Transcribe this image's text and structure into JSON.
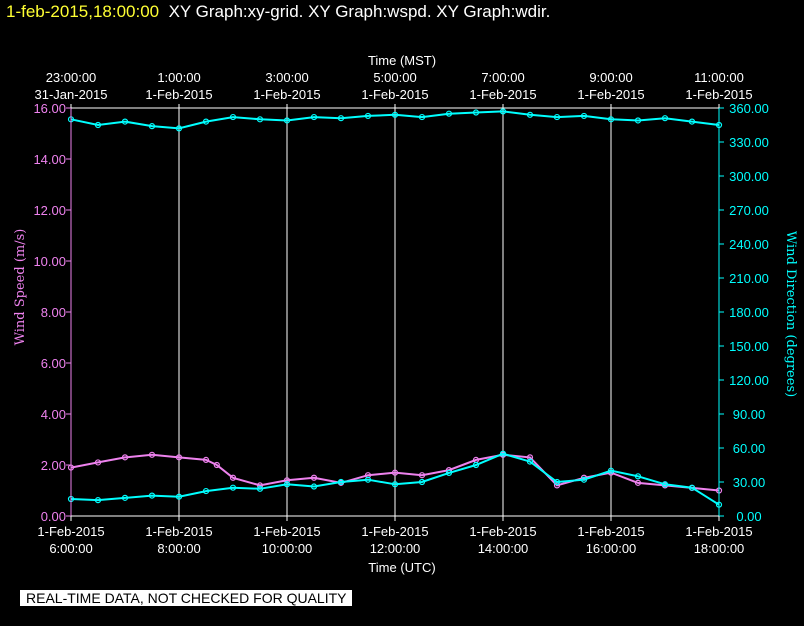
{
  "header": {
    "timestamp": "1-feb-2015,18:00:00",
    "graphs_title": "XY Graph:xy-grid.  XY Graph:wspd.  XY Graph:wdir."
  },
  "footer": {
    "notice": "REAL-TIME DATA, NOT CHECKED FOR QUALITY"
  },
  "colors": {
    "wspd": "#ee82ee",
    "wdir": "#00ffff",
    "timestamp": "#ffff33",
    "grid": "#ffffff",
    "background": "#000000"
  },
  "chart_data": {
    "type": "scatter",
    "top_axis": {
      "label": "Time (MST)",
      "ticks": [
        {
          "time": "23:00:00",
          "date": "31-Jan-2015",
          "utc_hour": 6
        },
        {
          "time": "1:00:00",
          "date": "1-Feb-2015",
          "utc_hour": 8
        },
        {
          "time": "3:00:00",
          "date": "1-Feb-2015",
          "utc_hour": 10
        },
        {
          "time": "5:00:00",
          "date": "1-Feb-2015",
          "utc_hour": 12
        },
        {
          "time": "7:00:00",
          "date": "1-Feb-2015",
          "utc_hour": 14
        },
        {
          "time": "9:00:00",
          "date": "1-Feb-2015",
          "utc_hour": 16
        },
        {
          "time": "11:00:00",
          "date": "1-Feb-2015",
          "utc_hour": 18
        }
      ]
    },
    "bottom_axis": {
      "label": "Time (UTC)",
      "ticks": [
        {
          "date": "1-Feb-2015",
          "time": "6:00:00",
          "utc_hour": 6
        },
        {
          "date": "1-Feb-2015",
          "time": "8:00:00",
          "utc_hour": 8
        },
        {
          "date": "1-Feb-2015",
          "time": "10:00:00",
          "utc_hour": 10
        },
        {
          "date": "1-Feb-2015",
          "time": "12:00:00",
          "utc_hour": 12
        },
        {
          "date": "1-Feb-2015",
          "time": "14:00:00",
          "utc_hour": 14
        },
        {
          "date": "1-Feb-2015",
          "time": "16:00:00",
          "utc_hour": 16
        },
        {
          "date": "1-Feb-2015",
          "time": "18:00:00",
          "utc_hour": 18
        }
      ],
      "range": [
        6,
        18
      ]
    },
    "left_axis": {
      "label": "Wind Speed (m/s)",
      "range": [
        0,
        16
      ],
      "ticks": [
        "0.00",
        "2.00",
        "4.00",
        "6.00",
        "8.00",
        "10.00",
        "12.00",
        "14.00",
        "16.00"
      ]
    },
    "right_axis": {
      "label": "Wind Direction (degrees)",
      "range": [
        0,
        360
      ],
      "ticks": [
        "0.00",
        "30.00",
        "60.00",
        "90.00",
        "120.00",
        "150.00",
        "180.00",
        "210.00",
        "240.00",
        "270.00",
        "300.00",
        "330.00",
        "360.00"
      ]
    },
    "vertical_grid_at_utc_hour": [
      8,
      10,
      12,
      14,
      16
    ],
    "series": [
      {
        "name": "wspd",
        "axis": "left",
        "x": [
          6.0,
          6.5,
          7.0,
          7.5,
          8.0,
          8.5,
          8.7,
          9.0,
          9.5,
          10.0,
          10.5,
          11.0,
          11.5,
          12.0,
          12.5,
          13.0,
          13.5,
          14.0,
          14.5,
          15.0,
          15.5,
          16.0,
          16.5,
          17.0,
          17.5,
          18.0
        ],
        "y": [
          1.9,
          2.1,
          2.3,
          2.4,
          2.3,
          2.2,
          2.0,
          1.5,
          1.2,
          1.4,
          1.5,
          1.3,
          1.6,
          1.7,
          1.6,
          1.8,
          2.2,
          2.4,
          2.3,
          1.2,
          1.5,
          1.7,
          1.3,
          1.2,
          1.1,
          1.0
        ]
      },
      {
        "name": "wdir",
        "axis": "right",
        "x": [
          6.0,
          6.5,
          7.0,
          7.5,
          8.0,
          8.5,
          9.0,
          9.5,
          10.0,
          10.5,
          11.0,
          11.5,
          12.0,
          12.5,
          13.0,
          13.5,
          14.0,
          14.5,
          15.0,
          15.5,
          16.0,
          16.5,
          17.0,
          17.5,
          18.0
        ],
        "y": [
          350,
          345,
          348,
          344,
          342,
          348,
          352,
          350,
          349,
          352,
          351,
          353,
          354,
          352,
          355,
          356,
          357,
          354,
          352,
          353,
          350,
          349,
          351,
          348,
          345
        ]
      },
      {
        "name": "wdir",
        "axis": "right",
        "x": [
          6.0,
          6.5,
          7.0,
          7.5,
          8.0,
          8.5,
          9.0,
          9.5,
          10.0,
          10.5,
          11.0,
          11.5,
          12.0,
          12.5,
          13.0,
          13.5,
          14.0,
          14.5,
          15.0,
          15.5,
          16.0,
          16.5,
          17.0,
          17.5,
          18.0
        ],
        "y": [
          15,
          14,
          16,
          18,
          17,
          22,
          25,
          24,
          28,
          26,
          30,
          32,
          28,
          30,
          38,
          45,
          55,
          48,
          30,
          32,
          40,
          35,
          28,
          25,
          10
        ]
      }
    ]
  }
}
